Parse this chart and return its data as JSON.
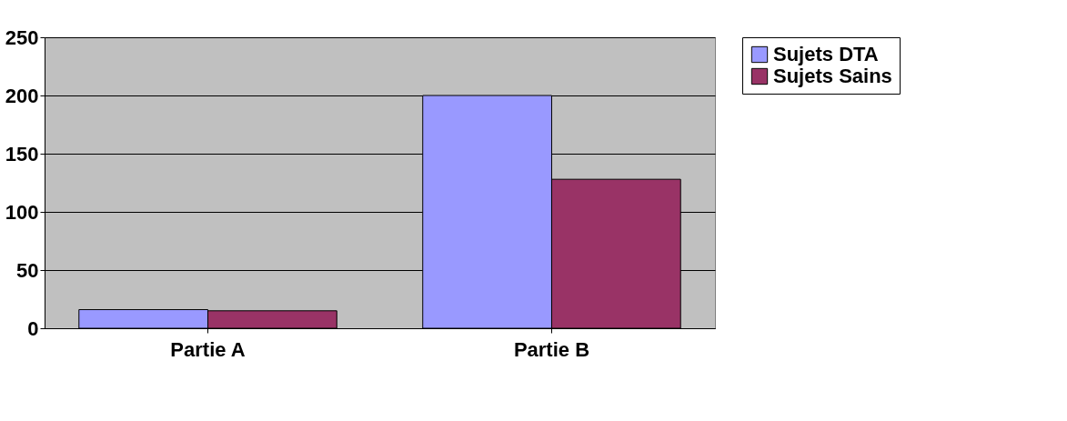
{
  "chart_data": {
    "type": "bar",
    "categories": [
      "Partie A",
      "Partie B"
    ],
    "series": [
      {
        "name": "Sujets DTA",
        "color": "#9999ff",
        "values": [
          16,
          200
        ]
      },
      {
        "name": "Sujets Sains",
        "color": "#993366",
        "values": [
          15,
          128
        ]
      }
    ],
    "ylim": [
      0,
      250
    ],
    "yticks": [
      0,
      50,
      100,
      150,
      200,
      250
    ],
    "grid": "y",
    "legend": "right"
  }
}
